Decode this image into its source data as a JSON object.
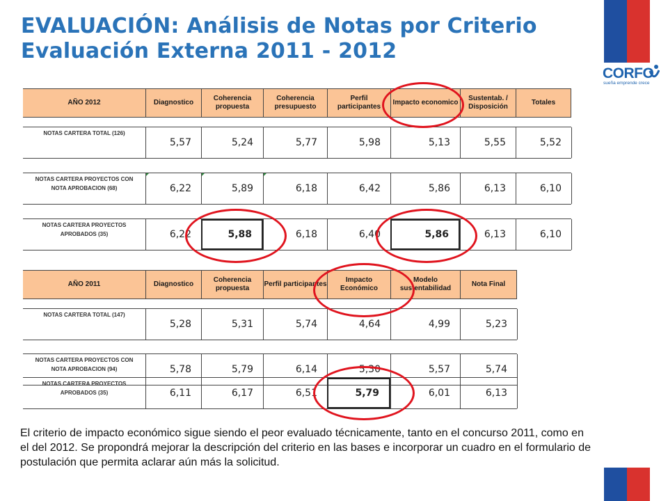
{
  "title": {
    "line1": "EVALUACIÓN: Análisis de Notas por Criterio",
    "line2": "Evaluación Externa 2011 - 2012"
  },
  "logo": {
    "name": "CORFO",
    "tagline": "sueña emprende crece"
  },
  "colors": {
    "header_fill": "#fbc496",
    "title_blue": "#2a73b8",
    "flag_blue": "#1f4fa0",
    "flag_red": "#d9322e",
    "highlight_red": "#e0141e"
  },
  "table2012": {
    "headers": [
      "AÑO 2012",
      "Diagnostico",
      "Coherencia propuesta",
      "Coherencia presupuesto",
      "Perfil participantes",
      "Impacto economico",
      "Sustentab. / Disposición",
      "Totales"
    ],
    "rows": [
      {
        "label": "NOTAS CARTERA TOTAL",
        "count": "(126)",
        "values": [
          "5,57",
          "5,24",
          "5,77",
          "5,98",
          "5,13",
          "5,55",
          "5,52"
        ]
      },
      {
        "label": "NOTAS CARTERA PROYECTOS CON NOTA APROBACION",
        "count": "(68)",
        "values": [
          "6,22",
          "5,89",
          "6,18",
          "6,42",
          "5,86",
          "6,13",
          "6,10"
        ]
      },
      {
        "label": "NOTAS CARTERA PROYECTOS APROBADOS",
        "count": "(35)",
        "values": [
          "6,22",
          "5,88",
          "6,18",
          "6,40",
          "5,86",
          "6,13",
          "6,10"
        ]
      }
    ]
  },
  "table2011": {
    "headers": [
      "AÑO 2011",
      "Diagnostico",
      "Coherencia propuesta",
      "Perfil participantes",
      "Impacto Económico",
      "Modelo sustentabilidad",
      "Nota Final"
    ],
    "rows": [
      {
        "label": "NOTAS CARTERA TOTAL",
        "count": "(147)",
        "values": [
          "5,28",
          "5,31",
          "5,74",
          "4,64",
          "4,99",
          "5,23"
        ]
      },
      {
        "label": "NOTAS CARTERA PROYECTOS CON NOTA APROBACION",
        "count": "(94)",
        "values": [
          "5,78",
          "5,79",
          "6,14",
          "5,30",
          "5,57",
          "5,74"
        ]
      },
      {
        "label": "NOTAS CARTERA PROYECTOS APROBADOS",
        "count": "(35)",
        "values": [
          "6,11",
          "6,17",
          "6,51",
          "5,79",
          "6,01",
          "6,13"
        ]
      }
    ]
  },
  "note": "El criterio de impacto económico sigue siendo el peor evaluado técnicamente, tanto en el concurso 2011, como en el del 2012. Se propondrá mejorar la descripción del criterio en las bases e incorporar un cuadro en el formulario de postulación que permita aclarar aún más la solicitud."
}
